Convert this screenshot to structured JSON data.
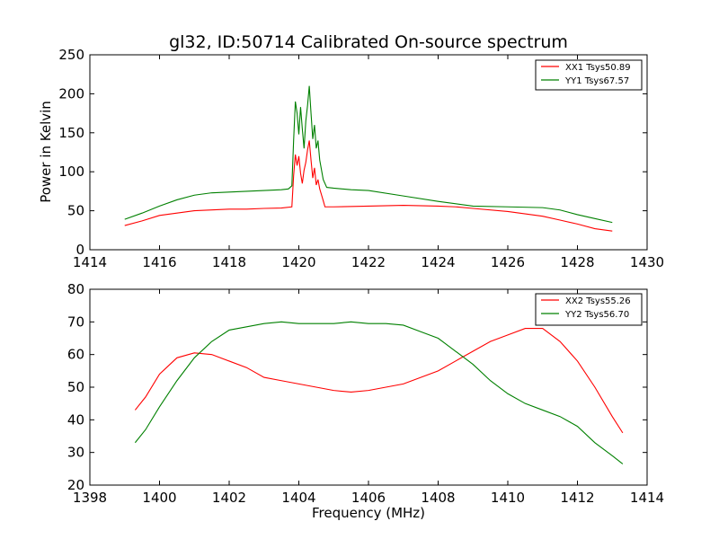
{
  "chart_data": [
    {
      "type": "line",
      "title": "gl32, ID:50714 Calibrated On-source spectrum",
      "xlabel": "",
      "ylabel": "Power in Kelvin",
      "xlim": [
        1414,
        1430
      ],
      "ylim": [
        0,
        250
      ],
      "xticks": [
        1414,
        1416,
        1418,
        1420,
        1422,
        1424,
        1426,
        1428,
        1430
      ],
      "yticks": [
        0,
        50,
        100,
        150,
        200,
        250
      ],
      "grid": false,
      "legend_position": "top-right",
      "series": [
        {
          "name": "XX1 Tsys50.89",
          "color": "#ff0000",
          "points": [
            [
              1415.0,
              31
            ],
            [
              1415.5,
              37
            ],
            [
              1416.0,
              44
            ],
            [
              1416.5,
              47
            ],
            [
              1417.0,
              50
            ],
            [
              1417.5,
              51
            ],
            [
              1418.0,
              52
            ],
            [
              1418.5,
              52
            ],
            [
              1419.0,
              53
            ],
            [
              1419.5,
              53.5
            ],
            [
              1419.8,
              55
            ],
            [
              1419.85,
              95
            ],
            [
              1419.9,
              122
            ],
            [
              1419.95,
              108
            ],
            [
              1420.0,
              120
            ],
            [
              1420.05,
              98
            ],
            [
              1420.1,
              85
            ],
            [
              1420.15,
              102
            ],
            [
              1420.2,
              112
            ],
            [
              1420.25,
              128
            ],
            [
              1420.3,
              140
            ],
            [
              1420.35,
              115
            ],
            [
              1420.4,
              92
            ],
            [
              1420.45,
              105
            ],
            [
              1420.5,
              83
            ],
            [
              1420.55,
              90
            ],
            [
              1420.6,
              78
            ],
            [
              1420.7,
              63
            ],
            [
              1420.75,
              55
            ],
            [
              1421.0,
              55
            ],
            [
              1422.0,
              56
            ],
            [
              1423.0,
              57
            ],
            [
              1424.0,
              56
            ],
            [
              1424.5,
              55
            ],
            [
              1425.0,
              53
            ],
            [
              1426.0,
              49
            ],
            [
              1427.0,
              43
            ],
            [
              1427.5,
              38
            ],
            [
              1428.0,
              33
            ],
            [
              1428.5,
              27
            ],
            [
              1429.0,
              24
            ]
          ]
        },
        {
          "name": "YY1 Tsys67.57",
          "color": "#008000",
          "points": [
            [
              1415.0,
              39
            ],
            [
              1415.5,
              47
            ],
            [
              1416.0,
              56
            ],
            [
              1416.5,
              64
            ],
            [
              1417.0,
              70
            ],
            [
              1417.5,
              73
            ],
            [
              1418.0,
              74
            ],
            [
              1418.5,
              75
            ],
            [
              1419.0,
              76
            ],
            [
              1419.5,
              77
            ],
            [
              1419.7,
              78
            ],
            [
              1419.8,
              82
            ],
            [
              1419.85,
              140
            ],
            [
              1419.9,
              190
            ],
            [
              1419.95,
              175
            ],
            [
              1420.0,
              148
            ],
            [
              1420.05,
              183
            ],
            [
              1420.1,
              155
            ],
            [
              1420.15,
              130
            ],
            [
              1420.2,
              165
            ],
            [
              1420.25,
              185
            ],
            [
              1420.3,
              210
            ],
            [
              1420.35,
              175
            ],
            [
              1420.4,
              142
            ],
            [
              1420.45,
              160
            ],
            [
              1420.5,
              130
            ],
            [
              1420.55,
              140
            ],
            [
              1420.6,
              115
            ],
            [
              1420.7,
              90
            ],
            [
              1420.8,
              80
            ],
            [
              1421.0,
              79
            ],
            [
              1421.5,
              77
            ],
            [
              1422.0,
              76
            ],
            [
              1423.0,
              69
            ],
            [
              1424.0,
              62
            ],
            [
              1425.0,
              56
            ],
            [
              1426.0,
              55
            ],
            [
              1427.0,
              54
            ],
            [
              1427.5,
              51
            ],
            [
              1428.0,
              45
            ],
            [
              1428.5,
              40
            ],
            [
              1429.0,
              35
            ]
          ]
        }
      ]
    },
    {
      "type": "line",
      "title": "",
      "xlabel": "Frequency (MHz)",
      "ylabel": "",
      "xlim": [
        1398,
        1414
      ],
      "ylim": [
        20,
        80
      ],
      "xticks": [
        1398,
        1400,
        1402,
        1404,
        1406,
        1408,
        1410,
        1412,
        1414
      ],
      "yticks": [
        20,
        30,
        40,
        50,
        60,
        70,
        80
      ],
      "grid": false,
      "legend_position": "top-right",
      "series": [
        {
          "name": "XX2 Tsys55.26",
          "color": "#ff0000",
          "points": [
            [
              1399.3,
              43
            ],
            [
              1399.6,
              47
            ],
            [
              1400.0,
              54
            ],
            [
              1400.5,
              59
            ],
            [
              1401.0,
              60.5
            ],
            [
              1401.5,
              60
            ],
            [
              1402.0,
              58
            ],
            [
              1402.5,
              56
            ],
            [
              1403.0,
              53
            ],
            [
              1403.5,
              52
            ],
            [
              1404.0,
              51
            ],
            [
              1404.5,
              50
            ],
            [
              1405.0,
              49
            ],
            [
              1405.5,
              48.5
            ],
            [
              1406.0,
              49
            ],
            [
              1406.5,
              50
            ],
            [
              1407.0,
              51
            ],
            [
              1407.5,
              53
            ],
            [
              1408.0,
              55
            ],
            [
              1408.5,
              58
            ],
            [
              1409.0,
              61
            ],
            [
              1409.5,
              64
            ],
            [
              1410.0,
              66
            ],
            [
              1410.5,
              68
            ],
            [
              1411.0,
              68
            ],
            [
              1411.5,
              64
            ],
            [
              1412.0,
              58
            ],
            [
              1412.5,
              50
            ],
            [
              1413.0,
              41
            ],
            [
              1413.3,
              36
            ]
          ]
        },
        {
          "name": "YY2 Tsys56.70",
          "color": "#008000",
          "points": [
            [
              1399.3,
              33
            ],
            [
              1399.6,
              37
            ],
            [
              1400.0,
              44
            ],
            [
              1400.5,
              52
            ],
            [
              1401.0,
              59
            ],
            [
              1401.5,
              64
            ],
            [
              1402.0,
              67.5
            ],
            [
              1402.5,
              68.5
            ],
            [
              1403.0,
              69.5
            ],
            [
              1403.5,
              70
            ],
            [
              1404.0,
              69.5
            ],
            [
              1404.5,
              69.5
            ],
            [
              1405.0,
              69.5
            ],
            [
              1405.5,
              70
            ],
            [
              1406.0,
              69.5
            ],
            [
              1406.5,
              69.5
            ],
            [
              1407.0,
              69
            ],
            [
              1407.5,
              67
            ],
            [
              1408.0,
              65
            ],
            [
              1408.5,
              61
            ],
            [
              1409.0,
              57
            ],
            [
              1409.5,
              52
            ],
            [
              1410.0,
              48
            ],
            [
              1410.5,
              45
            ],
            [
              1411.0,
              43
            ],
            [
              1411.5,
              41
            ],
            [
              1412.0,
              38
            ],
            [
              1412.5,
              33
            ],
            [
              1413.0,
              29
            ],
            [
              1413.3,
              26.5
            ]
          ]
        }
      ]
    }
  ]
}
